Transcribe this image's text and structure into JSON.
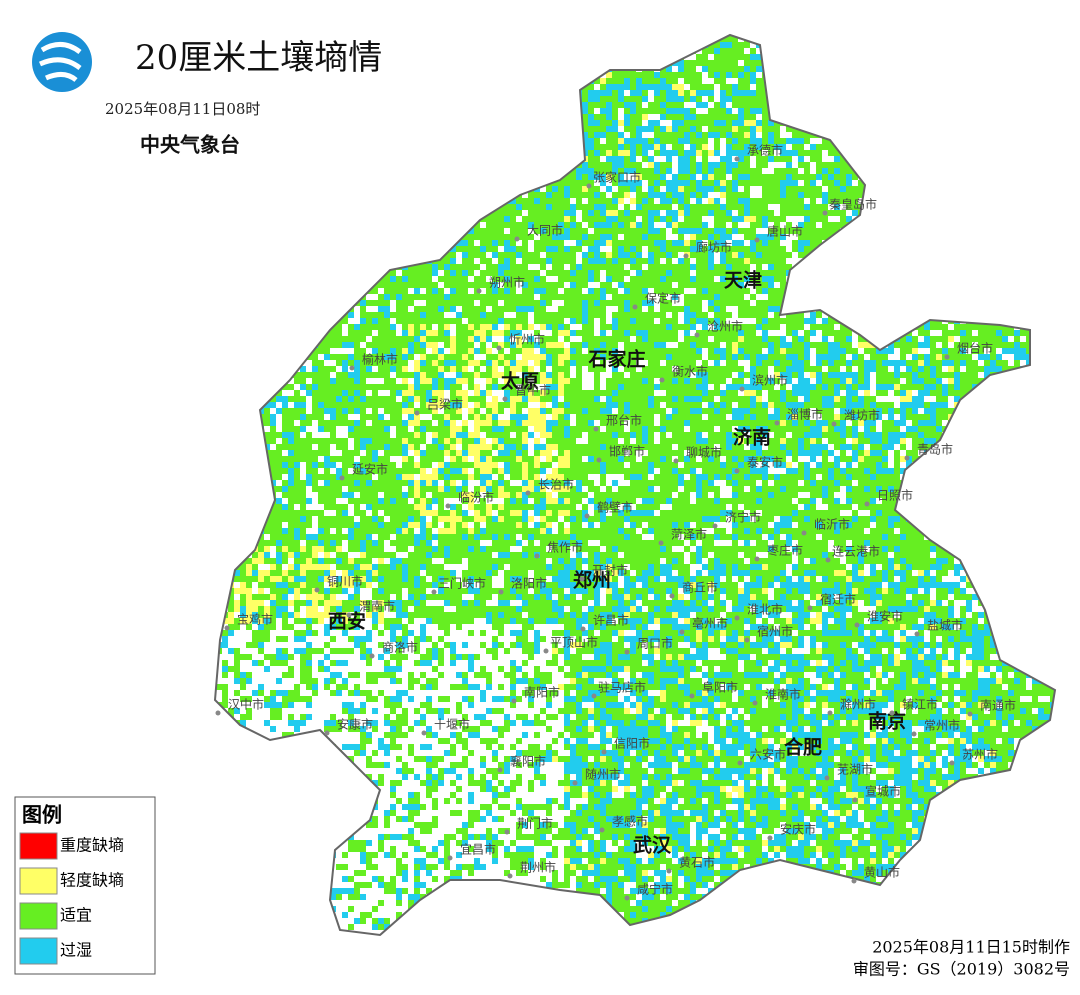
{
  "header": {
    "title": "20厘米土壤墒情",
    "issue_time": "2025年08月11日08时",
    "agency": "中央气象台"
  },
  "legend": {
    "title": "图例",
    "items": [
      {
        "label": "重度缺墒",
        "color": "#ff0000"
      },
      {
        "label": "轻度缺墒",
        "color": "#ffff66"
      },
      {
        "label": "适宜",
        "color": "#66ee22"
      },
      {
        "label": "过湿",
        "color": "#22ccee"
      }
    ]
  },
  "map": {
    "capitals": [
      "天津",
      "石家庄",
      "太原",
      "济南",
      "郑州",
      "西安",
      "南京",
      "合肥",
      "武汉"
    ],
    "cities": [
      "承德市",
      "张家口市",
      "秦皇岛市",
      "大同市",
      "廊坊市",
      "唐山市",
      "朔州市",
      "保定市",
      "沧州市",
      "忻州市",
      "烟台市",
      "榆林市",
      "衡水市",
      "滨州市",
      "吕梁市",
      "晋中市",
      "淄博市",
      "潍坊市",
      "邢台市",
      "青岛市",
      "邯郸市",
      "聊城市",
      "泰安市",
      "延安市",
      "临汾市",
      "长治市",
      "日照市",
      "鹤壁市",
      "济宁市",
      "临沂市",
      "菏泽市",
      "焦作市",
      "枣庄市",
      "连云港市",
      "开封市",
      "三门峡市",
      "洛阳市",
      "铜川市",
      "商丘市",
      "渭南市",
      "宝鸡市",
      "宿迁市",
      "淮北市",
      "许昌市",
      "淮安市",
      "盐城市",
      "亳州市",
      "宿州市",
      "商洛市",
      "平顶山市",
      "周口市",
      "南阳市",
      "驻马店市",
      "阜阳市",
      "淮南市",
      "汉中市",
      "安康市",
      "十堰市",
      "滁州市",
      "镇江市",
      "常州市",
      "南通市",
      "信阳市",
      "襄阳市",
      "六安市",
      "苏州市",
      "随州市",
      "芜湖市",
      "宣城市",
      "荆门市",
      "孝感市",
      "安庆市",
      "宜昌市",
      "荆州市",
      "黄石市",
      "咸宁市",
      "黄山市"
    ]
  },
  "footer": {
    "made_time": "2025年08月11日15时制作",
    "approval": "审图号：GS（2019）3082号"
  }
}
